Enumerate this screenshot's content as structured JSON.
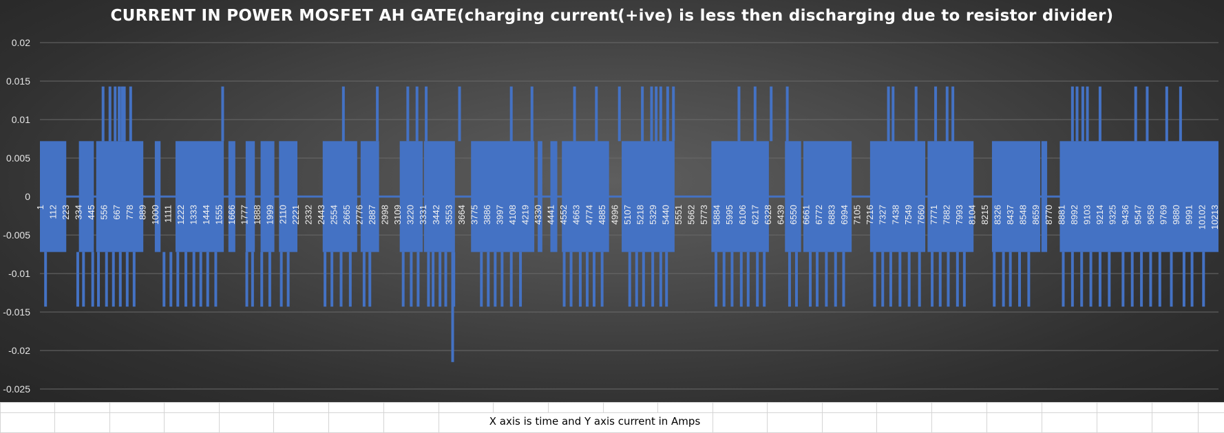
{
  "chart_data": {
    "type": "line",
    "title": "CURRENT IN POWER MOSFET AH GATE(charging current(+ive) is less then discharging due to resistor divider)",
    "xlabel": "",
    "ylabel": "",
    "ylim": [
      -0.025,
      0.02
    ],
    "y_ticks": [
      0.02,
      0.015,
      0.01,
      0.005,
      0,
      -0.005,
      -0.01,
      -0.015,
      -0.02,
      -0.025
    ],
    "y_tick_labels": [
      "0.02",
      "0.015",
      "0.01",
      "0.005",
      "0",
      "-0.005",
      "-0.01",
      "-0.015",
      "-0.02",
      "-0.025"
    ],
    "x_range": [
      1,
      10250
    ],
    "x_ticks": [
      1,
      112,
      223,
      334,
      445,
      556,
      667,
      778,
      889,
      1000,
      1111,
      1222,
      1333,
      1444,
      1555,
      1666,
      1777,
      1888,
      1999,
      2110,
      2221,
      2332,
      2443,
      2554,
      2665,
      2776,
      2887,
      2998,
      3109,
      3220,
      3331,
      3442,
      3553,
      3664,
      3775,
      3886,
      3997,
      4108,
      4219,
      4330,
      4441,
      4552,
      4663,
      4774,
      4885,
      4996,
      5107,
      5218,
      5329,
      5440,
      5551,
      5662,
      5773,
      5884,
      5995,
      6106,
      6217,
      6328,
      6439,
      6550,
      6661,
      6772,
      6883,
      6994,
      7105,
      7216,
      7327,
      7438,
      7549,
      7660,
      7771,
      7882,
      7993,
      8104,
      8215,
      8326,
      8437,
      8548,
      8659,
      8770,
      8881,
      8992,
      9103,
      9214,
      9325,
      9436,
      9547,
      9658,
      9769,
      9880,
      9991,
      10102,
      10213
    ],
    "grid": true,
    "legend": "none",
    "series_color": "#4472c4",
    "levels": {
      "high": 0.0072,
      "low": -0.0072,
      "spike_high": 0.0143,
      "spike_low": -0.0143,
      "min_spike": -0.0215
    },
    "segments": [
      [
        1,
        230,
        0.0072,
        -0.0072
      ],
      [
        230,
        340,
        0,
        0
      ],
      [
        340,
        470,
        0.0072,
        -0.0072
      ],
      [
        470,
        490,
        0,
        0
      ],
      [
        490,
        900,
        0.0072,
        -0.0072
      ],
      [
        900,
        1000,
        0,
        0
      ],
      [
        1000,
        1050,
        0.0072,
        -0.0072
      ],
      [
        1050,
        1180,
        0,
        0
      ],
      [
        1180,
        1600,
        0.0072,
        -0.0072
      ],
      [
        1600,
        1640,
        0,
        0
      ],
      [
        1640,
        1700,
        0.0072,
        -0.0072
      ],
      [
        1700,
        1790,
        0,
        0
      ],
      [
        1790,
        1870,
        0.0072,
        -0.0072
      ],
      [
        1870,
        1920,
        0,
        0
      ],
      [
        1920,
        2040,
        0.0072,
        -0.0072
      ],
      [
        2040,
        2080,
        0,
        0
      ],
      [
        2080,
        2240,
        0.0072,
        -0.0072
      ],
      [
        2240,
        2460,
        0,
        0
      ],
      [
        2460,
        2760,
        0.0072,
        -0.0072
      ],
      [
        2760,
        2790,
        0,
        0
      ],
      [
        2790,
        2950,
        0.0072,
        -0.0072
      ],
      [
        2950,
        3130,
        0,
        0
      ],
      [
        3130,
        3330,
        0.0072,
        -0.0072
      ],
      [
        3330,
        3340,
        0,
        0
      ],
      [
        3340,
        3610,
        0.0072,
        -0.0072
      ],
      [
        3610,
        3750,
        0,
        0
      ],
      [
        3750,
        4300,
        0.0072,
        -0.0072
      ],
      [
        4300,
        4330,
        0,
        0
      ],
      [
        4330,
        4370,
        0.0072,
        -0.0072
      ],
      [
        4370,
        4440,
        0,
        0
      ],
      [
        4440,
        4500,
        0.0072,
        -0.0072
      ],
      [
        4500,
        4540,
        0,
        0
      ],
      [
        4540,
        4950,
        0.0072,
        -0.0072
      ],
      [
        4950,
        5060,
        0,
        0
      ],
      [
        5060,
        5520,
        0.0072,
        -0.0072
      ],
      [
        5520,
        5840,
        0,
        0
      ],
      [
        5840,
        6340,
        0.0072,
        -0.0072
      ],
      [
        6340,
        6480,
        0,
        0
      ],
      [
        6480,
        6620,
        0.0072,
        -0.0072
      ],
      [
        6620,
        6640,
        0,
        0
      ],
      [
        6640,
        7060,
        0.0072,
        -0.0072
      ],
      [
        7060,
        7220,
        0,
        0
      ],
      [
        7220,
        7700,
        0.0072,
        -0.0072
      ],
      [
        7700,
        7720,
        0,
        0
      ],
      [
        7720,
        8120,
        0.0072,
        -0.0072
      ],
      [
        8120,
        8280,
        0,
        0
      ],
      [
        8280,
        8700,
        0.0072,
        -0.0072
      ],
      [
        8700,
        8710,
        0,
        0
      ],
      [
        8710,
        8760,
        0.0072,
        -0.0072
      ],
      [
        8760,
        8870,
        0,
        0
      ],
      [
        8870,
        10250,
        0.0072,
        -0.0072
      ]
    ],
    "spikes": [
      {
        "x": 550,
        "y": 0.0143
      },
      {
        "x": 610,
        "y": 0.0143
      },
      {
        "x": 655,
        "y": 0.0143
      },
      {
        "x": 690,
        "y": 0.0143
      },
      {
        "x": 715,
        "y": 0.0143
      },
      {
        "x": 735,
        "y": 0.0143
      },
      {
        "x": 790,
        "y": 0.0143
      },
      {
        "x": 1590,
        "y": 0.0143
      },
      {
        "x": 2640,
        "y": 0.0143
      },
      {
        "x": 2935,
        "y": 0.0143
      },
      {
        "x": 3200,
        "y": 0.0143
      },
      {
        "x": 3280,
        "y": 0.0143
      },
      {
        "x": 3360,
        "y": 0.0143
      },
      {
        "x": 3650,
        "y": 0.0143
      },
      {
        "x": 4100,
        "y": 0.0143
      },
      {
        "x": 4280,
        "y": 0.0143
      },
      {
        "x": 4650,
        "y": 0.0143
      },
      {
        "x": 4840,
        "y": 0.0143
      },
      {
        "x": 5040,
        "y": 0.0143
      },
      {
        "x": 5240,
        "y": 0.0143
      },
      {
        "x": 5320,
        "y": 0.0143
      },
      {
        "x": 5360,
        "y": 0.0143
      },
      {
        "x": 5400,
        "y": 0.0143
      },
      {
        "x": 5460,
        "y": 0.0143
      },
      {
        "x": 5510,
        "y": 0.0143
      },
      {
        "x": 6080,
        "y": 0.0143
      },
      {
        "x": 6220,
        "y": 0.0143
      },
      {
        "x": 6360,
        "y": 0.0143
      },
      {
        "x": 6500,
        "y": 0.0143
      },
      {
        "x": 7380,
        "y": 0.0143
      },
      {
        "x": 7420,
        "y": 0.0143
      },
      {
        "x": 7620,
        "y": 0.0143
      },
      {
        "x": 7790,
        "y": 0.0143
      },
      {
        "x": 7890,
        "y": 0.0143
      },
      {
        "x": 7940,
        "y": 0.0143
      },
      {
        "x": 8980,
        "y": 0.0143
      },
      {
        "x": 9020,
        "y": 0.0143
      },
      {
        "x": 9070,
        "y": 0.0143
      },
      {
        "x": 9110,
        "y": 0.0143
      },
      {
        "x": 9220,
        "y": 0.0143
      },
      {
        "x": 9530,
        "y": 0.0143
      },
      {
        "x": 9630,
        "y": 0.0143
      },
      {
        "x": 9800,
        "y": 0.0143
      },
      {
        "x": 9920,
        "y": 0.0143
      },
      {
        "x": 50,
        "y": -0.0143
      },
      {
        "x": 330,
        "y": -0.0143
      },
      {
        "x": 380,
        "y": -0.0143
      },
      {
        "x": 460,
        "y": -0.0143
      },
      {
        "x": 510,
        "y": -0.0143
      },
      {
        "x": 580,
        "y": -0.0143
      },
      {
        "x": 640,
        "y": -0.0143
      },
      {
        "x": 700,
        "y": -0.0143
      },
      {
        "x": 760,
        "y": -0.0143
      },
      {
        "x": 820,
        "y": -0.0143
      },
      {
        "x": 1080,
        "y": -0.0143
      },
      {
        "x": 1140,
        "y": -0.0143
      },
      {
        "x": 1200,
        "y": -0.0143
      },
      {
        "x": 1270,
        "y": -0.0143
      },
      {
        "x": 1340,
        "y": -0.0143
      },
      {
        "x": 1400,
        "y": -0.0143
      },
      {
        "x": 1460,
        "y": -0.0143
      },
      {
        "x": 1530,
        "y": -0.0143
      },
      {
        "x": 1800,
        "y": -0.0143
      },
      {
        "x": 1850,
        "y": -0.0143
      },
      {
        "x": 1930,
        "y": -0.0143
      },
      {
        "x": 2000,
        "y": -0.0143
      },
      {
        "x": 2100,
        "y": -0.0143
      },
      {
        "x": 2160,
        "y": -0.0143
      },
      {
        "x": 2480,
        "y": -0.0143
      },
      {
        "x": 2540,
        "y": -0.0143
      },
      {
        "x": 2620,
        "y": -0.0143
      },
      {
        "x": 2700,
        "y": -0.0143
      },
      {
        "x": 2820,
        "y": -0.0143
      },
      {
        "x": 2870,
        "y": -0.0143
      },
      {
        "x": 3160,
        "y": -0.0143
      },
      {
        "x": 3230,
        "y": -0.0143
      },
      {
        "x": 3290,
        "y": -0.0143
      },
      {
        "x": 3380,
        "y": -0.0143
      },
      {
        "x": 3420,
        "y": -0.0143
      },
      {
        "x": 3480,
        "y": -0.0143
      },
      {
        "x": 3530,
        "y": -0.0143
      },
      {
        "x": 3600,
        "y": -0.0143
      },
      {
        "x": 3840,
        "y": -0.0143
      },
      {
        "x": 3900,
        "y": -0.0143
      },
      {
        "x": 3960,
        "y": -0.0143
      },
      {
        "x": 4020,
        "y": -0.0143
      },
      {
        "x": 4100,
        "y": -0.0143
      },
      {
        "x": 4180,
        "y": -0.0143
      },
      {
        "x": 4560,
        "y": -0.0143
      },
      {
        "x": 4620,
        "y": -0.0143
      },
      {
        "x": 4700,
        "y": -0.0143
      },
      {
        "x": 4760,
        "y": -0.0143
      },
      {
        "x": 4820,
        "y": -0.0143
      },
      {
        "x": 4890,
        "y": -0.0143
      },
      {
        "x": 5130,
        "y": -0.0143
      },
      {
        "x": 5190,
        "y": -0.0143
      },
      {
        "x": 5250,
        "y": -0.0143
      },
      {
        "x": 5330,
        "y": -0.0143
      },
      {
        "x": 5400,
        "y": -0.0143
      },
      {
        "x": 5450,
        "y": -0.0143
      },
      {
        "x": 5880,
        "y": -0.0143
      },
      {
        "x": 5950,
        "y": -0.0143
      },
      {
        "x": 6020,
        "y": -0.0143
      },
      {
        "x": 6100,
        "y": -0.0143
      },
      {
        "x": 6160,
        "y": -0.0143
      },
      {
        "x": 6240,
        "y": -0.0143
      },
      {
        "x": 6300,
        "y": -0.0143
      },
      {
        "x": 6520,
        "y": -0.0143
      },
      {
        "x": 6580,
        "y": -0.0143
      },
      {
        "x": 6700,
        "y": -0.0143
      },
      {
        "x": 6760,
        "y": -0.0143
      },
      {
        "x": 6840,
        "y": -0.0143
      },
      {
        "x": 6920,
        "y": -0.0143
      },
      {
        "x": 6990,
        "y": -0.0143
      },
      {
        "x": 7260,
        "y": -0.0143
      },
      {
        "x": 7330,
        "y": -0.0143
      },
      {
        "x": 7400,
        "y": -0.0143
      },
      {
        "x": 7480,
        "y": -0.0143
      },
      {
        "x": 7560,
        "y": -0.0143
      },
      {
        "x": 7650,
        "y": -0.0143
      },
      {
        "x": 7760,
        "y": -0.0143
      },
      {
        "x": 7830,
        "y": -0.0143
      },
      {
        "x": 7900,
        "y": -0.0143
      },
      {
        "x": 7980,
        "y": -0.0143
      },
      {
        "x": 8040,
        "y": -0.0143
      },
      {
        "x": 8300,
        "y": -0.0143
      },
      {
        "x": 8380,
        "y": -0.0143
      },
      {
        "x": 8440,
        "y": -0.0143
      },
      {
        "x": 8520,
        "y": -0.0143
      },
      {
        "x": 8600,
        "y": -0.0143
      },
      {
        "x": 8900,
        "y": -0.0143
      },
      {
        "x": 8980,
        "y": -0.0143
      },
      {
        "x": 9060,
        "y": -0.0143
      },
      {
        "x": 9140,
        "y": -0.0143
      },
      {
        "x": 9220,
        "y": -0.0143
      },
      {
        "x": 9300,
        "y": -0.0143
      },
      {
        "x": 9420,
        "y": -0.0143
      },
      {
        "x": 9500,
        "y": -0.0143
      },
      {
        "x": 9580,
        "y": -0.0143
      },
      {
        "x": 9660,
        "y": -0.0143
      },
      {
        "x": 9740,
        "y": -0.0143
      },
      {
        "x": 9840,
        "y": -0.0143
      },
      {
        "x": 9950,
        "y": -0.0143
      },
      {
        "x": 10020,
        "y": -0.0143
      },
      {
        "x": 10120,
        "y": -0.0143
      },
      {
        "x": 3590,
        "y": -0.0215
      }
    ]
  },
  "caption": "X axis is time and Y axis current in Amps"
}
